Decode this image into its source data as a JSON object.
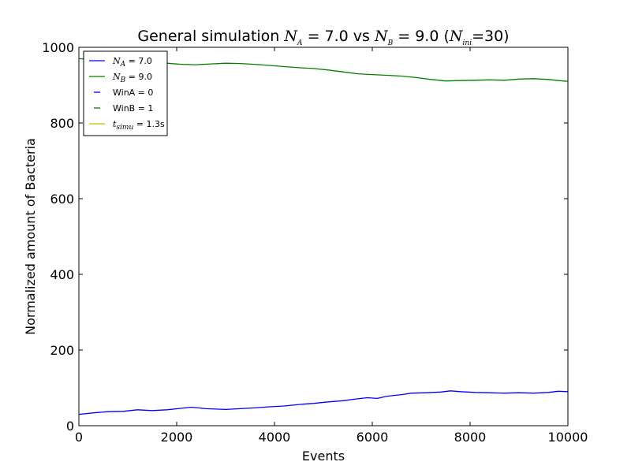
{
  "chart_data": {
    "type": "line",
    "title": {
      "prefix": "General simulation ",
      "na_symbol": "N",
      "na_sub": "A",
      "na_value": " = 7.0 vs ",
      "nb_symbol": "N",
      "nb_sub": "B",
      "nb_value": " = 9.0 (",
      "ni_symbol": "N",
      "ni_sub": "ini",
      "ni_value": "=30)"
    },
    "xlabel": "Events",
    "ylabel": "Normalized amount of Bacteria",
    "xlim": [
      0,
      10000
    ],
    "ylim": [
      0,
      1000
    ],
    "x_ticks": [
      0,
      2000,
      4000,
      6000,
      8000,
      10000
    ],
    "y_ticks": [
      0,
      200,
      400,
      600,
      800,
      1000
    ],
    "x_tick_labels": [
      "0",
      "2000",
      "4000",
      "6000",
      "8000",
      "10000"
    ],
    "y_tick_labels": [
      "0",
      "200",
      "400",
      "600",
      "800",
      "1000"
    ],
    "grid": false,
    "legend": {
      "position": "top-left",
      "entries": [
        {
          "symbol": "N",
          "sub": "A",
          "text": " = 7.0",
          "color": "#0000ff",
          "style": "solid"
        },
        {
          "symbol": "N",
          "sub": "B",
          "text": " = 9.0",
          "color": "#008000",
          "style": "solid"
        },
        {
          "symbol": "",
          "sub": "",
          "text": "WinA = 0",
          "color": "#0000ff",
          "style": "dash"
        },
        {
          "symbol": "",
          "sub": "",
          "text": "WinB = 1",
          "color": "#008000",
          "style": "dash"
        },
        {
          "symbol": "t",
          "sub": "simu",
          "text": " = 1.3s",
          "color": "#bfbf00",
          "style": "solid"
        }
      ]
    },
    "series": [
      {
        "color": "#0000ff",
        "x": [
          0,
          300,
          600,
          900,
          1200,
          1500,
          1800,
          2100,
          2300,
          2600,
          3000,
          3300,
          3600,
          3900,
          4200,
          4500,
          4800,
          5100,
          5400,
          5700,
          5900,
          6100,
          6300,
          6600,
          6800,
          7100,
          7400,
          7600,
          7800,
          8100,
          8400,
          8700,
          9000,
          9300,
          9600,
          9800,
          10000
        ],
        "y": [
          30,
          34,
          37,
          38,
          42,
          40,
          42,
          46,
          49,
          45,
          43,
          45,
          47,
          50,
          52,
          56,
          59,
          63,
          66,
          71,
          74,
          72,
          78,
          82,
          86,
          87,
          89,
          92,
          90,
          88,
          87,
          86,
          87,
          86,
          88,
          91,
          90
        ]
      },
      {
        "color": "#008000",
        "x": [
          0,
          300,
          600,
          900,
          1200,
          1500,
          1800,
          2100,
          2400,
          2700,
          3000,
          3300,
          3600,
          3900,
          4200,
          4500,
          4800,
          5100,
          5400,
          5700,
          6000,
          6300,
          6600,
          6900,
          7200,
          7500,
          7800,
          8100,
          8400,
          8700,
          9000,
          9300,
          9600,
          9800,
          10000
        ],
        "y": [
          970,
          968,
          966,
          964,
          962,
          960,
          958,
          955,
          954,
          956,
          958,
          957,
          955,
          952,
          949,
          946,
          944,
          940,
          935,
          930,
          928,
          926,
          924,
          920,
          915,
          911,
          912,
          913,
          914,
          913,
          916,
          917,
          915,
          912,
          910
        ]
      }
    ]
  }
}
